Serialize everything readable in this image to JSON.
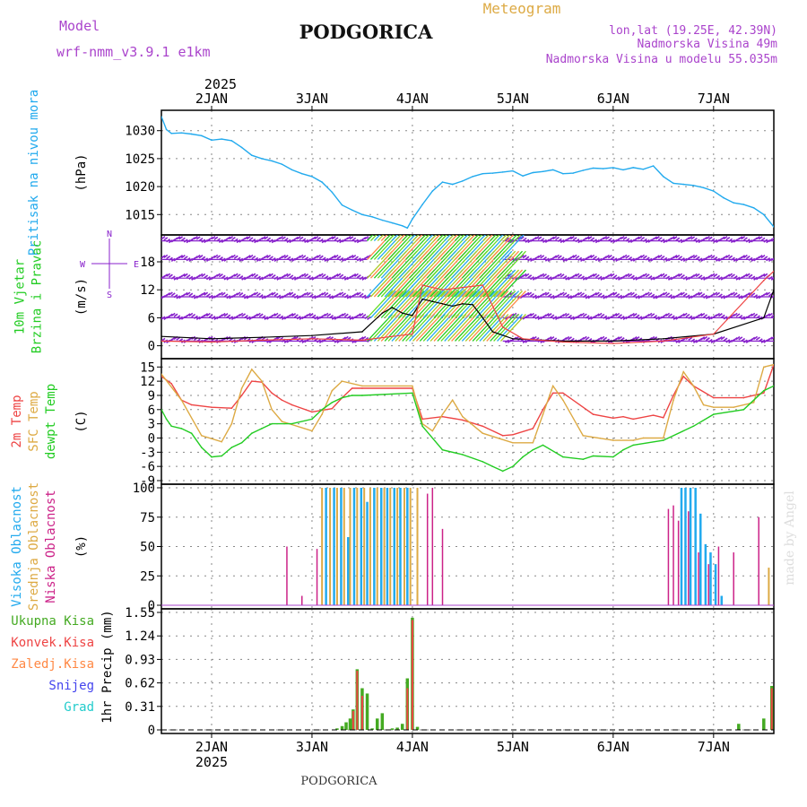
{
  "header": {
    "model_label": "Model",
    "model_name": "wrf-nmm_v3.9.1 e1km",
    "title": "PODGORICA",
    "meteogram_label": "Meteogram",
    "coords": "lon,lat (19.25E, 42.39N)",
    "elevation": "Nadmorska Visina 49m",
    "model_elevation": "Nadmorska Visina u modelu 55.035m",
    "footer_title": "PODGORICA",
    "watermark": "made by Angel"
  },
  "time_axis": {
    "year": "2025",
    "days": [
      "2JAN",
      "3JAN",
      "4JAN",
      "5JAN",
      "6JAN",
      "7JAN"
    ],
    "day_offsets": [
      0.5,
      1.5,
      2.5,
      3.5,
      4.5,
      5.5
    ],
    "range": [
      0,
      6.1
    ]
  },
  "colors": {
    "pressure": "#22aaee",
    "wind_speed": "#000000",
    "wind_barbs": "#8822cc",
    "temp_2m": "#ee4444",
    "temp_sfc": "#ddaa44",
    "dewpoint": "#22cc22",
    "cloud_high": "#22aaee",
    "cloud_mid": "#ddaa44",
    "cloud_low": "#cc2288",
    "precip_total": "#44aa22",
    "precip_conv": "#ee4444",
    "precip_frozen": "#ff8844",
    "snow": "#4444ee",
    "hail": "#22cccc",
    "title_purple": "#aa44cc",
    "meteogram_gold": "#ddaa44"
  },
  "chart_data": [
    {
      "type": "line",
      "id": "pressure",
      "ylabel": "(hPa)",
      "side_labels": [
        "Pritisak na nivou mora"
      ],
      "yticks": [
        1015,
        1020,
        1025,
        1030
      ],
      "ylim": [
        1012,
        1033
      ],
      "grid": true,
      "series": [
        {
          "x": [
            0,
            0.05,
            0.1,
            0.2,
            0.3,
            0.4,
            0.5,
            0.6,
            0.7,
            0.8,
            0.9,
            1.0,
            1.1,
            1.2,
            1.3,
            1.4,
            1.5,
            1.6,
            1.7,
            1.8,
            1.9,
            2.0,
            2.1,
            2.2,
            2.3,
            2.4,
            2.45,
            2.5,
            2.6,
            2.7,
            2.8,
            2.9,
            3.0,
            3.1,
            3.2,
            3.3,
            3.4,
            3.5,
            3.6,
            3.7,
            3.8,
            3.9,
            4.0,
            4.1,
            4.2,
            4.3,
            4.4,
            4.5,
            4.6,
            4.7,
            4.8,
            4.9,
            5.0,
            5.1,
            5.2,
            5.3,
            5.4,
            5.5,
            5.6,
            5.7,
            5.8,
            5.9,
            6.0,
            6.1
          ],
          "y": [
            1032.5,
            1030.2,
            1029.5,
            1029.6,
            1029.4,
            1029.1,
            1028.3,
            1028.5,
            1028.2,
            1027.0,
            1025.6,
            1025.0,
            1024.6,
            1024.0,
            1023.0,
            1022.3,
            1021.8,
            1020.8,
            1019.0,
            1016.7,
            1015.8,
            1015.0,
            1014.6,
            1014.0,
            1013.5,
            1013.0,
            1012.6,
            1014.2,
            1016.8,
            1019.2,
            1020.8,
            1020.4,
            1021.0,
            1021.8,
            1022.3,
            1022.4,
            1022.6,
            1022.8,
            1021.9,
            1022.5,
            1022.7,
            1023.0,
            1022.3,
            1022.4,
            1022.9,
            1023.3,
            1023.2,
            1023.4,
            1023.0,
            1023.4,
            1023.1,
            1023.7,
            1021.8,
            1020.6,
            1020.4,
            1020.2,
            1019.8,
            1019.2,
            1018.0,
            1017.1,
            1016.8,
            1016.2,
            1015.0,
            1012.8
          ]
        }
      ]
    },
    {
      "type": "line",
      "id": "wind",
      "ylabel": "(m/s)",
      "side_labels": [
        "10m Vjetar",
        "Brzina i Pravac"
      ],
      "compass_labels": [
        "N",
        "S",
        "W",
        "E"
      ],
      "yticks": [
        0,
        6,
        12,
        18
      ],
      "ylim": [
        -2,
        23
      ],
      "grid": true,
      "series": [
        {
          "name": "speed",
          "x": [
            0,
            0.5,
            1.0,
            1.5,
            2.0,
            2.2,
            2.3,
            2.4,
            2.5,
            2.6,
            2.7,
            2.8,
            2.9,
            3.0,
            3.1,
            3.2,
            3.3,
            3.5,
            4.0,
            4.5,
            5.0,
            5.5,
            6.0,
            6.1
          ],
          "y": [
            2.0,
            1.5,
            1.8,
            2.2,
            3.0,
            7.0,
            8.2,
            7.0,
            6.5,
            10.0,
            9.5,
            9.0,
            8.5,
            9.0,
            8.8,
            6.0,
            3.0,
            1.5,
            1.0,
            1.0,
            1.5,
            2.5,
            6.0,
            12.0
          ]
        },
        {
          "name": "gust",
          "x": [
            0,
            0.5,
            1.0,
            1.5,
            2.0,
            2.3,
            2.5,
            2.6,
            2.8,
            3.0,
            3.2,
            3.4,
            3.6,
            4.0,
            4.5,
            5.0,
            5.5,
            6.0,
            6.1
          ],
          "y": [
            1.0,
            0.8,
            1.2,
            1.5,
            1.2,
            2.0,
            2.5,
            13.0,
            12.0,
            12.5,
            13.0,
            4.0,
            1.5,
            0.8,
            0.5,
            1.0,
            2.5,
            14.0,
            16.0
          ]
        }
      ],
      "barb_rows": [
        1,
        6,
        10.5,
        14.5,
        18.5,
        22.5
      ]
    },
    {
      "type": "line",
      "id": "temperature",
      "ylabel": "(C)",
      "side_labels": [
        "2m Temp",
        "SFC Temp",
        "dewpt Temp"
      ],
      "yticks": [
        -9,
        -6,
        -3,
        0,
        3,
        6,
        9,
        12,
        15
      ],
      "ylim": [
        -9,
        16
      ],
      "grid": true,
      "series": [
        {
          "name": "2m Temp",
          "x": [
            0,
            0.1,
            0.2,
            0.3,
            0.5,
            0.7,
            0.8,
            0.9,
            1.0,
            1.1,
            1.2,
            1.3,
            1.5,
            1.7,
            1.8,
            1.9,
            2.0,
            2.5,
            2.6,
            2.8,
            3.0,
            3.2,
            3.4,
            3.5,
            3.7,
            3.8,
            3.9,
            4.0,
            4.3,
            4.5,
            4.6,
            4.7,
            4.9,
            5.0,
            5.1,
            5.2,
            5.3,
            5.5,
            5.8,
            6.0,
            6.1
          ],
          "y": [
            13.0,
            11.5,
            8.0,
            7.0,
            6.5,
            6.3,
            9.0,
            12.0,
            11.8,
            9.5,
            8.0,
            7.0,
            5.5,
            6.2,
            8.5,
            10.5,
            10.5,
            10.5,
            4.0,
            4.5,
            3.8,
            2.5,
            0.5,
            0.7,
            2.0,
            6.0,
            9.5,
            9.5,
            5.0,
            4.2,
            4.5,
            4.0,
            4.8,
            4.3,
            9.0,
            13.0,
            11.0,
            8.5,
            8.5,
            9.5,
            15.5
          ]
        },
        {
          "name": "SFC Temp",
          "x": [
            0,
            0.2,
            0.4,
            0.6,
            0.7,
            0.8,
            0.9,
            1.0,
            1.1,
            1.2,
            1.5,
            1.6,
            1.7,
            1.8,
            2.0,
            2.5,
            2.6,
            2.7,
            2.8,
            2.9,
            3.0,
            3.2,
            3.5,
            3.7,
            3.8,
            3.9,
            4.0,
            4.2,
            4.5,
            4.7,
            4.8,
            5.0,
            5.1,
            5.2,
            5.3,
            5.4,
            5.5,
            5.7,
            5.9,
            6.0,
            6.1
          ],
          "y": [
            13.5,
            8.0,
            0.5,
            -0.8,
            3.0,
            10.5,
            14.5,
            12.0,
            6.0,
            3.5,
            1.5,
            5.0,
            10.0,
            12.0,
            11.0,
            11.0,
            3.0,
            1.5,
            5.0,
            8.0,
            4.5,
            1.0,
            -1.0,
            -1.0,
            5.0,
            11.0,
            8.0,
            0.5,
            -0.5,
            -0.5,
            0.0,
            0.0,
            8.0,
            14.0,
            11.0,
            7.0,
            6.5,
            6.5,
            7.5,
            15.0,
            15.5
          ]
        },
        {
          "name": "dewpt Temp",
          "x": [
            0,
            0.05,
            0.1,
            0.2,
            0.3,
            0.4,
            0.5,
            0.6,
            0.7,
            0.8,
            0.9,
            1.0,
            1.1,
            1.3,
            1.5,
            1.6,
            1.7,
            1.8,
            1.9,
            2.0,
            2.5,
            2.6,
            2.8,
            3.0,
            3.2,
            3.3,
            3.4,
            3.5,
            3.6,
            3.7,
            3.8,
            4.0,
            4.2,
            4.3,
            4.5,
            4.6,
            4.7,
            5.0,
            5.3,
            5.5,
            5.8,
            6.0,
            6.1
          ],
          "y": [
            6.0,
            4.0,
            2.5,
            2.0,
            1.0,
            -2.0,
            -4.0,
            -3.8,
            -2.0,
            -1.0,
            1.0,
            2.0,
            3.0,
            3.0,
            4.0,
            6.0,
            7.5,
            8.5,
            9.0,
            9.0,
            9.5,
            2.5,
            -2.5,
            -3.5,
            -5.0,
            -6.0,
            -7.0,
            -6.0,
            -4.0,
            -2.5,
            -1.5,
            -4.0,
            -4.5,
            -3.8,
            -4.0,
            -2.5,
            -1.5,
            -0.5,
            2.5,
            5.0,
            6.0,
            10.0,
            11.0
          ]
        }
      ]
    },
    {
      "type": "bar",
      "id": "clouds",
      "ylabel": "(%)",
      "side_labels": [
        "Visoka Oblacnost",
        "Srednja Oblacnost",
        "Niska Oblacnost"
      ],
      "yticks": [
        0,
        25,
        50,
        75,
        100
      ],
      "ylim": [
        0,
        100
      ],
      "grid": true,
      "series": [
        {
          "name": "Niska Oblacnost",
          "x": [
            1.25,
            1.4,
            1.55,
            2.65,
            2.7,
            2.8,
            5.05,
            5.1,
            5.15,
            5.25,
            5.35,
            5.45,
            5.55,
            5.7,
            5.95
          ],
          "values": [
            50,
            8,
            48,
            95,
            100,
            65,
            82,
            85,
            72,
            80,
            45,
            35,
            50,
            45,
            75
          ]
        },
        {
          "name": "Srednja Oblacnost",
          "x": [
            1.6,
            1.68,
            1.75,
            1.82,
            1.88,
            1.95,
            2.02,
            2.08,
            2.15,
            2.22,
            2.28,
            2.35,
            2.42,
            2.48,
            2.55,
            6.05
          ],
          "values": [
            100,
            100,
            100,
            100,
            100,
            100,
            100,
            100,
            100,
            100,
            100,
            100,
            100,
            100,
            100,
            32
          ]
        },
        {
          "name": "Visoka Oblacnost",
          "x": [
            1.64,
            1.72,
            1.79,
            1.86,
            1.92,
            1.99,
            2.05,
            2.12,
            2.19,
            2.25,
            2.32,
            2.38,
            2.45,
            5.18,
            5.22,
            5.27,
            5.32,
            5.37,
            5.42,
            5.47,
            5.52,
            5.58
          ],
          "values": [
            100,
            100,
            100,
            58,
            100,
            100,
            88,
            100,
            100,
            100,
            100,
            100,
            100,
            100,
            100,
            100,
            100,
            78,
            52,
            45,
            35,
            8
          ]
        }
      ]
    },
    {
      "type": "bar",
      "id": "precip",
      "ylabel": "1hr Precip (mm)",
      "side_labels": [
        "Ukupna Kisa",
        "Konvek.Kisa",
        "Zaledj.Kisa",
        "Snijeg",
        "Grad"
      ],
      "yticks": [
        0,
        0.31,
        0.62,
        0.93,
        1.24,
        1.55
      ],
      "ylim": [
        0,
        1.55
      ],
      "grid": true,
      "series": [
        {
          "name": "Ukupna Kisa",
          "x": [
            1.75,
            1.8,
            1.84,
            1.88,
            1.91,
            1.95,
            2.0,
            2.05,
            2.1,
            2.15,
            2.2,
            2.3,
            2.35,
            2.4,
            2.45,
            2.5,
            2.55,
            5.75,
            6.0,
            6.08
          ],
          "values": [
            0.02,
            0.05,
            0.1,
            0.15,
            0.27,
            0.8,
            0.55,
            0.48,
            0.02,
            0.15,
            0.22,
            0.02,
            0.03,
            0.08,
            0.68,
            1.48,
            0.04,
            0.08,
            0.15,
            0.58
          ]
        },
        {
          "name": "Konvek.Kisa",
          "x": [
            1.91,
            1.95,
            2.0,
            2.45,
            2.5,
            6.08
          ],
          "values": [
            0.25,
            0.78,
            0.45,
            0.55,
            1.45,
            0.55
          ]
        }
      ]
    }
  ]
}
